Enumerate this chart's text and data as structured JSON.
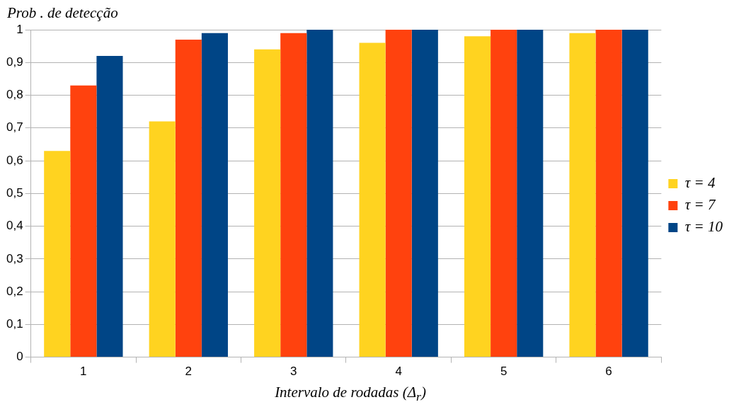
{
  "chart_data": {
    "type": "bar",
    "ylabel": "Prob . de detecção",
    "xlabel": "Intervalo de rodadas (Δ$_{r}$)",
    "categories": [
      "1",
      "2",
      "3",
      "4",
      "5",
      "6"
    ],
    "series": [
      {
        "name": "τ = 4",
        "color": "#ffd320",
        "values": [
          0.63,
          0.72,
          0.94,
          0.96,
          0.98,
          0.99
        ]
      },
      {
        "name": "τ = 7",
        "color": "#ff420e",
        "values": [
          0.83,
          0.97,
          0.99,
          1,
          1,
          1
        ]
      },
      {
        "name": "τ = 10",
        "color": "#004586",
        "values": [
          0.92,
          0.99,
          1,
          1,
          1,
          1
        ]
      }
    ],
    "ylim": [
      0,
      1
    ],
    "yticks": [
      0,
      {
        "value": 0.1,
        "label": "0,1"
      },
      {
        "value": 0.2,
        "label": "0,2"
      },
      {
        "value": 0.3,
        "label": "0,3"
      },
      {
        "value": 0.4,
        "label": "0,4"
      },
      {
        "value": 0.5,
        "label": "0,5"
      },
      {
        "value": 0.6,
        "label": "0,6"
      },
      {
        "value": 0.7,
        "label": "0,7"
      },
      {
        "value": 0.8,
        "label": "0,8"
      },
      {
        "value": 0.9,
        "label": "0,9"
      },
      1
    ],
    "grid": "y",
    "legend": "right"
  }
}
